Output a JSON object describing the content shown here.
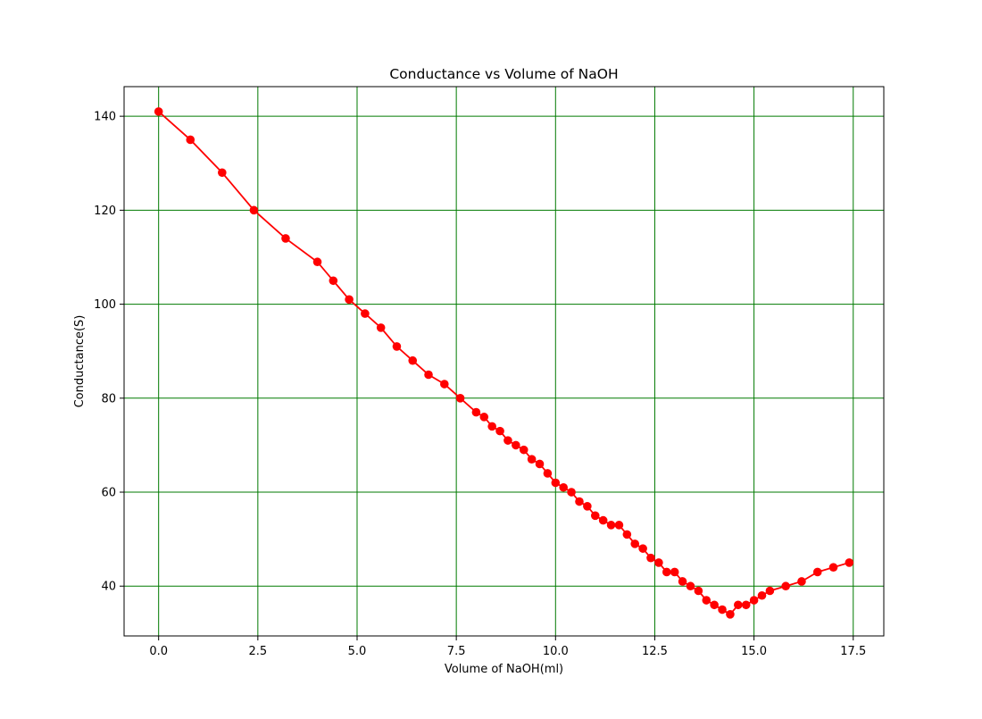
{
  "chart_data": {
    "type": "line",
    "title": "Conductance vs Volume of NaOH",
    "xlabel": "Volume of NaOH(ml)",
    "ylabel": "Conductance(S)",
    "xlim": [
      -0.87,
      18.27
    ],
    "ylim": [
      29.4,
      146.3
    ],
    "xticks": [
      0.0,
      2.5,
      5.0,
      7.5,
      10.0,
      12.5,
      15.0,
      17.5
    ],
    "xtick_labels": [
      "0.0",
      "2.5",
      "5.0",
      "7.5",
      "10.0",
      "12.5",
      "15.0",
      "17.5"
    ],
    "yticks": [
      40,
      60,
      80,
      100,
      120,
      140
    ],
    "ytick_labels": [
      "40",
      "60",
      "80",
      "100",
      "120",
      "140"
    ],
    "grid": true,
    "grid_color": "#007a00",
    "series": [
      {
        "color": "#ff0000",
        "marker": "circle",
        "x": [
          0.0,
          0.8,
          1.6,
          2.4,
          3.2,
          4.0,
          4.4,
          4.8,
          5.2,
          5.6,
          6.0,
          6.4,
          6.8,
          7.2,
          7.6,
          8.0,
          8.2,
          8.4,
          8.6,
          8.8,
          9.0,
          9.2,
          9.4,
          9.6,
          9.8,
          10.0,
          10.2,
          10.4,
          10.6,
          10.8,
          11.0,
          11.2,
          11.4,
          11.6,
          11.8,
          12.0,
          12.2,
          12.4,
          12.6,
          12.8,
          13.0,
          13.2,
          13.4,
          13.6,
          13.8,
          14.0,
          14.2,
          14.4,
          14.6,
          14.8,
          15.0,
          15.2,
          15.4,
          15.8,
          16.2,
          16.6,
          17.0,
          17.4
        ],
        "y": [
          141,
          135,
          128,
          120,
          114,
          109,
          105,
          101,
          98,
          95,
          91,
          88,
          85,
          83,
          80,
          77,
          76,
          74,
          73,
          71,
          70,
          69,
          67,
          66,
          64,
          62,
          61,
          60,
          58,
          57,
          55,
          54,
          53,
          53,
          51,
          49,
          48,
          46,
          45,
          43,
          43,
          41,
          40,
          39,
          37,
          36,
          35,
          34,
          36,
          36,
          37,
          38,
          39,
          40,
          41,
          43,
          44,
          45
        ]
      }
    ]
  }
}
